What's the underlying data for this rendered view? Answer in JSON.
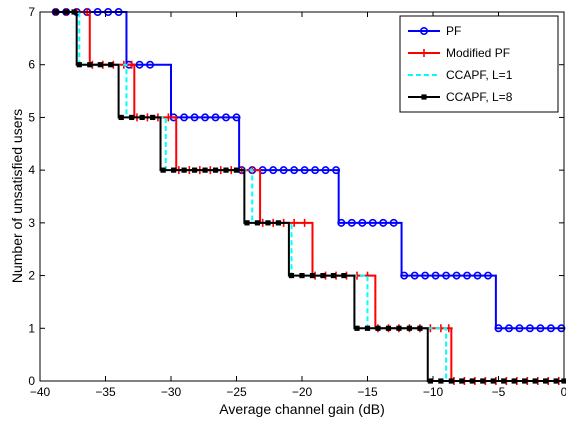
{
  "chart_data": {
    "type": "line",
    "title": "",
    "xlabel": "Average channel gain (dB)",
    "ylabel": "Number of unsatisfied users",
    "xlim": [
      -40,
      0
    ],
    "ylim": [
      0,
      7
    ],
    "xticks": [
      "−40",
      "−35",
      "−30",
      "−25",
      "−20",
      "−15",
      "−10",
      "−5",
      "0"
    ],
    "xtick_values": [
      -40,
      -35,
      -30,
      -25,
      -20,
      -15,
      -10,
      -5,
      0
    ],
    "yticks": [
      "0",
      "1",
      "2",
      "3",
      "4",
      "5",
      "6",
      "7"
    ],
    "ytick_values": [
      0,
      1,
      2,
      3,
      4,
      5,
      6,
      7
    ],
    "grid": false,
    "legend_position": "top-right",
    "series": [
      {
        "name": "PF",
        "color": "#0000ff",
        "line_style": "solid",
        "marker": "circle",
        "steps": [
          [
            -38.8,
            7
          ],
          [
            -33.4,
            6
          ],
          [
            -30.0,
            5
          ],
          [
            -24.8,
            4
          ],
          [
            -17.2,
            3
          ],
          [
            -12.4,
            2
          ],
          [
            -5.2,
            1
          ],
          [
            0,
            1
          ]
        ],
        "markers": [
          [
            -38.8,
            7
          ],
          [
            -38.0,
            7
          ],
          [
            -37.2,
            7
          ],
          [
            -36.4,
            7
          ],
          [
            -35.6,
            7
          ],
          [
            -34.8,
            7
          ],
          [
            -34.0,
            7
          ],
          [
            -33.2,
            6
          ],
          [
            -32.4,
            6
          ],
          [
            -31.6,
            6
          ],
          [
            -29.8,
            5
          ],
          [
            -29.0,
            5
          ],
          [
            -28.2,
            5
          ],
          [
            -27.4,
            5
          ],
          [
            -26.6,
            5
          ],
          [
            -25.8,
            5
          ],
          [
            -25.0,
            5
          ],
          [
            -24.6,
            4
          ],
          [
            -23.8,
            4
          ],
          [
            -23.0,
            4
          ],
          [
            -22.2,
            4
          ],
          [
            -21.4,
            4
          ],
          [
            -20.6,
            4
          ],
          [
            -19.8,
            4
          ],
          [
            -19.0,
            4
          ],
          [
            -18.2,
            4
          ],
          [
            -17.4,
            4
          ],
          [
            -17.0,
            3
          ],
          [
            -16.2,
            3
          ],
          [
            -15.4,
            3
          ],
          [
            -14.6,
            3
          ],
          [
            -13.8,
            3
          ],
          [
            -13.0,
            3
          ],
          [
            -12.2,
            2
          ],
          [
            -11.4,
            2
          ],
          [
            -10.6,
            2
          ],
          [
            -9.8,
            2
          ],
          [
            -9.0,
            2
          ],
          [
            -8.2,
            2
          ],
          [
            -7.4,
            2
          ],
          [
            -6.6,
            2
          ],
          [
            -5.8,
            2
          ],
          [
            -5.0,
            1
          ],
          [
            -4.2,
            1
          ],
          [
            -3.4,
            1
          ],
          [
            -2.6,
            1
          ],
          [
            -1.8,
            1
          ],
          [
            -1.0,
            1
          ],
          [
            -0.2,
            1
          ]
        ]
      },
      {
        "name": "Modified PF",
        "color": "#ff0000",
        "line_style": "solid",
        "marker": "plus",
        "steps": [
          [
            -38.8,
            7
          ],
          [
            -36.2,
            6
          ],
          [
            -32.8,
            5
          ],
          [
            -29.6,
            4
          ],
          [
            -23.2,
            3
          ],
          [
            -19.2,
            2
          ],
          [
            -14.4,
            1
          ],
          [
            -8.6,
            0
          ],
          [
            0,
            0
          ]
        ],
        "markers": [
          [
            -38.8,
            7
          ],
          [
            -38.0,
            7
          ],
          [
            -37.2,
            7
          ],
          [
            -36.4,
            7
          ],
          [
            -36.0,
            6
          ],
          [
            -35.2,
            6
          ],
          [
            -34.4,
            6
          ],
          [
            -33.6,
            6
          ],
          [
            -33.0,
            6
          ],
          [
            -32.6,
            5
          ],
          [
            -31.8,
            5
          ],
          [
            -31.0,
            5
          ],
          [
            -30.2,
            5
          ],
          [
            -29.4,
            4
          ],
          [
            -28.6,
            4
          ],
          [
            -27.8,
            4
          ],
          [
            -27.0,
            4
          ],
          [
            -26.2,
            4
          ],
          [
            -25.4,
            4
          ],
          [
            -24.6,
            4
          ],
          [
            -23.8,
            4
          ],
          [
            -23.0,
            3
          ],
          [
            -22.2,
            3
          ],
          [
            -21.4,
            3
          ],
          [
            -20.6,
            3
          ],
          [
            -19.8,
            3
          ],
          [
            -19.0,
            2
          ],
          [
            -18.2,
            2
          ],
          [
            -17.4,
            2
          ],
          [
            -16.6,
            2
          ],
          [
            -15.8,
            2
          ],
          [
            -15.0,
            2
          ],
          [
            -14.2,
            1
          ],
          [
            -13.4,
            1
          ],
          [
            -12.6,
            1
          ],
          [
            -11.8,
            1
          ],
          [
            -11.0,
            1
          ],
          [
            -10.2,
            1
          ],
          [
            -9.4,
            1
          ],
          [
            -8.8,
            1
          ],
          [
            -8.4,
            0
          ],
          [
            -7.6,
            0
          ],
          [
            -6.8,
            0
          ],
          [
            -6.0,
            0
          ],
          [
            -5.2,
            0
          ],
          [
            -4.4,
            0
          ],
          [
            -3.6,
            0
          ],
          [
            -2.8,
            0
          ],
          [
            -2.0,
            0
          ],
          [
            -1.2,
            0
          ],
          [
            -0.4,
            0
          ]
        ]
      },
      {
        "name": "CCAPF, L=1",
        "color": "#00ffff",
        "line_style": "dashed",
        "marker": "none",
        "steps": [
          [
            -38.8,
            7
          ],
          [
            -37.0,
            6
          ],
          [
            -33.4,
            5
          ],
          [
            -30.4,
            4
          ],
          [
            -23.8,
            3
          ],
          [
            -20.8,
            2
          ],
          [
            -15.0,
            1
          ],
          [
            -9.0,
            0
          ],
          [
            0,
            0
          ]
        ],
        "markers": []
      },
      {
        "name": "CCAPF, L=8",
        "color": "#000000",
        "line_style": "solid",
        "marker": "square",
        "steps": [
          [
            -38.8,
            7
          ],
          [
            -37.2,
            6
          ],
          [
            -34.0,
            5
          ],
          [
            -30.8,
            4
          ],
          [
            -24.4,
            3
          ],
          [
            -21.0,
            2
          ],
          [
            -16.0,
            1
          ],
          [
            -10.4,
            0
          ],
          [
            0,
            0
          ]
        ],
        "markers": [
          [
            -38.8,
            7
          ],
          [
            -38.0,
            7
          ],
          [
            -37.4,
            7
          ],
          [
            -37.0,
            6
          ],
          [
            -36.2,
            6
          ],
          [
            -35.4,
            6
          ],
          [
            -34.6,
            6
          ],
          [
            -33.8,
            5
          ],
          [
            -33.0,
            5
          ],
          [
            -32.2,
            5
          ],
          [
            -31.4,
            5
          ],
          [
            -30.6,
            4
          ],
          [
            -29.8,
            4
          ],
          [
            -29.0,
            4
          ],
          [
            -28.2,
            4
          ],
          [
            -27.4,
            4
          ],
          [
            -26.6,
            4
          ],
          [
            -25.8,
            4
          ],
          [
            -25.0,
            4
          ],
          [
            -24.2,
            3
          ],
          [
            -23.4,
            3
          ],
          [
            -22.6,
            3
          ],
          [
            -21.8,
            3
          ],
          [
            -20.8,
            2
          ],
          [
            -20.0,
            2
          ],
          [
            -19.2,
            2
          ],
          [
            -18.4,
            2
          ],
          [
            -17.6,
            2
          ],
          [
            -16.8,
            2
          ],
          [
            -15.8,
            1
          ],
          [
            -15.0,
            1
          ],
          [
            -14.2,
            1
          ],
          [
            -13.4,
            1
          ],
          [
            -12.6,
            1
          ],
          [
            -11.8,
            1
          ],
          [
            -11.0,
            1
          ],
          [
            -10.2,
            0
          ],
          [
            -9.4,
            0
          ],
          [
            -8.6,
            0
          ],
          [
            -7.8,
            0
          ],
          [
            -7.0,
            0
          ],
          [
            -6.2,
            0
          ],
          [
            -5.4,
            0
          ],
          [
            -4.6,
            0
          ],
          [
            -3.8,
            0
          ],
          [
            -3.0,
            0
          ],
          [
            -2.2,
            0
          ],
          [
            -1.4,
            0
          ],
          [
            -0.6,
            0
          ],
          [
            0,
            0
          ]
        ]
      }
    ]
  }
}
